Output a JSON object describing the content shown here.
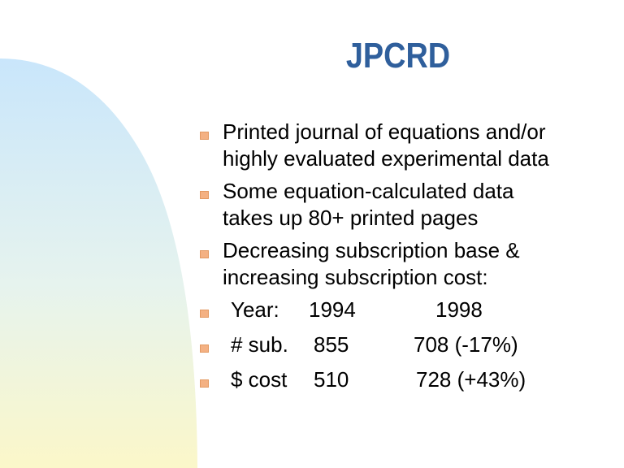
{
  "title": "JPCRD",
  "bullets": [
    {
      "line1": "Printed journal of equations and/or",
      "line2": "highly evaluated experimental data"
    },
    {
      "line1": "Some equation-calculated data",
      "line2": "takes up 80+ printed pages"
    },
    {
      "line1": "Decreasing subscription base  &",
      "line2": "increasing subscription cost:"
    }
  ],
  "table_rows": [
    {
      "label": "Year:",
      "v1": "1994",
      "v2": "1998"
    },
    {
      "label": "# sub.",
      "v1": "855",
      "v2": "708  (-17%)"
    },
    {
      "label": "$ cost",
      "v1": "510",
      "v2": "728 (+43%)"
    }
  ],
  "colors": {
    "title": "#2f5f9c",
    "bullet_marker": "#f4b183",
    "decor_top": "#c9e6fb",
    "decor_bottom": "#fbf7c9"
  }
}
